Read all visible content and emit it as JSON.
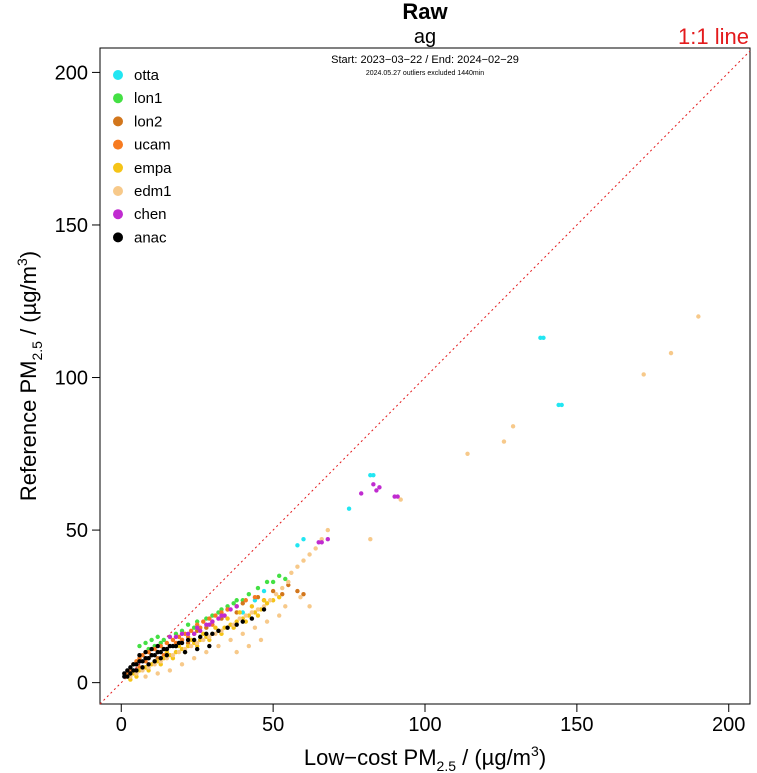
{
  "chart_data": {
    "type": "scatter",
    "title": "Raw",
    "subtitle": "ag",
    "info_line": "Start: 2023−03−22 / End: 2024−02−29",
    "info_note": "2024.05.27 outliers excluded 1440min",
    "reference_line_label": "1:1 line",
    "reference_line_color": "#e31a1c",
    "xlabel": {
      "main": "Low−cost PM",
      "sub": "2.5",
      "unit": " / (µg/m",
      "sup": "3",
      "close": ")"
    },
    "ylabel": {
      "main": "Reference PM",
      "sub": "2.5",
      "unit": " / (µg/m",
      "sup": "3",
      "close": ")"
    },
    "xlim": [
      -7,
      207
    ],
    "ylim": [
      -7,
      208
    ],
    "xticks": [
      0,
      50,
      100,
      150,
      200
    ],
    "yticks": [
      0,
      50,
      100,
      150,
      200
    ],
    "grid": false,
    "legend_position": "top-left",
    "series": [
      {
        "name": "otta",
        "color": "#22e6f2",
        "points": [
          [
            138,
            113
          ],
          [
            139,
            113
          ],
          [
            144,
            91
          ],
          [
            145,
            91
          ],
          [
            82,
            68
          ],
          [
            83,
            68
          ],
          [
            75,
            57
          ],
          [
            60,
            47
          ],
          [
            58,
            45
          ],
          [
            47,
            30
          ],
          [
            44,
            27
          ],
          [
            40,
            23
          ]
        ]
      },
      {
        "name": "lon1",
        "color": "#44e044",
        "points": [
          [
            8,
            13
          ],
          [
            10,
            14
          ],
          [
            12,
            15
          ],
          [
            14,
            14
          ],
          [
            6,
            12
          ],
          [
            16,
            15
          ],
          [
            18,
            16
          ],
          [
            20,
            17
          ],
          [
            22,
            19
          ],
          [
            25,
            20
          ],
          [
            28,
            21
          ],
          [
            30,
            22
          ],
          [
            32,
            23
          ],
          [
            35,
            25
          ],
          [
            37,
            26
          ],
          [
            40,
            27
          ],
          [
            42,
            29
          ],
          [
            45,
            31
          ],
          [
            48,
            33
          ],
          [
            52,
            35
          ],
          [
            54,
            34
          ],
          [
            11,
            12
          ],
          [
            13,
            13
          ],
          [
            9,
            11
          ],
          [
            24,
            18
          ],
          [
            33,
            24
          ],
          [
            38,
            27
          ],
          [
            50,
            33
          ]
        ]
      },
      {
        "name": "lon2",
        "color": "#d2761c",
        "points": [
          [
            5,
            6
          ],
          [
            10,
            9
          ],
          [
            15,
            11
          ],
          [
            20,
            14
          ],
          [
            25,
            17
          ],
          [
            30,
            20
          ],
          [
            35,
            24
          ],
          [
            40,
            26
          ],
          [
            45,
            28
          ],
          [
            50,
            30
          ],
          [
            55,
            32
          ],
          [
            58,
            30
          ],
          [
            60,
            29
          ],
          [
            12,
            8
          ],
          [
            18,
            12
          ],
          [
            28,
            18
          ],
          [
            38,
            23
          ],
          [
            47,
            27
          ],
          [
            53,
            29
          ],
          [
            8,
            5
          ],
          [
            22,
            13
          ],
          [
            33,
            21
          ]
        ]
      },
      {
        "name": "ucam",
        "color": "#f77b20",
        "points": [
          [
            3,
            4
          ],
          [
            5,
            7
          ],
          [
            7,
            9
          ],
          [
            9,
            10
          ],
          [
            11,
            11
          ],
          [
            13,
            12
          ],
          [
            15,
            13
          ],
          [
            17,
            14
          ],
          [
            19,
            15
          ],
          [
            21,
            16
          ],
          [
            23,
            17
          ],
          [
            25,
            19
          ],
          [
            27,
            20
          ],
          [
            29,
            21
          ],
          [
            31,
            22
          ],
          [
            33,
            23
          ],
          [
            35,
            24
          ],
          [
            38,
            25
          ],
          [
            41,
            27
          ],
          [
            44,
            28
          ],
          [
            4,
            6
          ],
          [
            6,
            8
          ],
          [
            8,
            7
          ],
          [
            10,
            9
          ],
          [
            12,
            10
          ],
          [
            14,
            11
          ],
          [
            16,
            12
          ],
          [
            18,
            13
          ],
          [
            20,
            14
          ],
          [
            22,
            15
          ],
          [
            24,
            16
          ],
          [
            26,
            18
          ],
          [
            30,
            19
          ],
          [
            34,
            22
          ],
          [
            2,
            3
          ],
          [
            6,
            5
          ],
          [
            9,
            8
          ],
          [
            14,
            9
          ]
        ]
      },
      {
        "name": "empa",
        "color": "#f5c417",
        "points": [
          [
            2,
            2
          ],
          [
            4,
            3
          ],
          [
            6,
            4
          ],
          [
            8,
            5
          ],
          [
            10,
            6
          ],
          [
            12,
            7
          ],
          [
            14,
            8
          ],
          [
            16,
            9
          ],
          [
            18,
            10
          ],
          [
            20,
            11
          ],
          [
            22,
            12
          ],
          [
            24,
            13
          ],
          [
            26,
            14
          ],
          [
            28,
            15
          ],
          [
            30,
            16
          ],
          [
            32,
            17
          ],
          [
            34,
            18
          ],
          [
            36,
            19
          ],
          [
            38,
            20
          ],
          [
            40,
            21
          ],
          [
            42,
            22
          ],
          [
            44,
            23
          ],
          [
            46,
            24
          ],
          [
            48,
            26
          ],
          [
            50,
            27
          ],
          [
            52,
            28
          ],
          [
            5,
            2
          ],
          [
            9,
            4
          ],
          [
            13,
            6
          ],
          [
            17,
            8
          ],
          [
            21,
            10
          ],
          [
            25,
            12
          ],
          [
            29,
            14
          ],
          [
            33,
            16
          ],
          [
            37,
            18
          ],
          [
            41,
            20
          ],
          [
            45,
            22
          ],
          [
            3,
            1
          ],
          [
            7,
            5
          ],
          [
            11,
            7
          ],
          [
            15,
            10
          ],
          [
            19,
            12
          ],
          [
            23,
            14
          ],
          [
            27,
            16
          ],
          [
            31,
            18
          ],
          [
            35,
            21
          ],
          [
            39,
            23
          ],
          [
            43,
            25
          ],
          [
            47,
            27
          ]
        ]
      },
      {
        "name": "edm1",
        "color": "#f7c98a",
        "points": [
          [
            190,
            120
          ],
          [
            181,
            108
          ],
          [
            172,
            101
          ],
          [
            129,
            84
          ],
          [
            126,
            79
          ],
          [
            114,
            75
          ],
          [
            92,
            60
          ],
          [
            82,
            47
          ],
          [
            68,
            50
          ],
          [
            66,
            47
          ],
          [
            64,
            44
          ],
          [
            62,
            42
          ],
          [
            60,
            40
          ],
          [
            58,
            38
          ],
          [
            56,
            36
          ],
          [
            55,
            33
          ],
          [
            53,
            31
          ],
          [
            51,
            29
          ],
          [
            49,
            27
          ],
          [
            47,
            25
          ],
          [
            45,
            24
          ],
          [
            43,
            23
          ],
          [
            41,
            22
          ],
          [
            39,
            21
          ],
          [
            37,
            19
          ],
          [
            35,
            18
          ],
          [
            33,
            17
          ],
          [
            31,
            16
          ],
          [
            29,
            15
          ],
          [
            27,
            14
          ],
          [
            25,
            13
          ],
          [
            23,
            12
          ],
          [
            21,
            11
          ],
          [
            19,
            10
          ],
          [
            17,
            9
          ],
          [
            15,
            8
          ],
          [
            13,
            7
          ],
          [
            11,
            6
          ],
          [
            9,
            5
          ],
          [
            7,
            4
          ],
          [
            5,
            3
          ],
          [
            3,
            2
          ],
          [
            62,
            25
          ],
          [
            59,
            28
          ],
          [
            52,
            22
          ],
          [
            48,
            20
          ],
          [
            44,
            18
          ],
          [
            40,
            16
          ],
          [
            36,
            14
          ],
          [
            32,
            12
          ],
          [
            28,
            10
          ],
          [
            24,
            8
          ],
          [
            20,
            6
          ],
          [
            16,
            4
          ],
          [
            12,
            3
          ],
          [
            8,
            2
          ],
          [
            54,
            25
          ],
          [
            46,
            14
          ],
          [
            42,
            12
          ],
          [
            38,
            10
          ]
        ]
      },
      {
        "name": "chen",
        "color": "#c02bd0",
        "points": [
          [
            91,
            61
          ],
          [
            90,
            61
          ],
          [
            85,
            64
          ],
          [
            84,
            63
          ],
          [
            83,
            65
          ],
          [
            79,
            62
          ],
          [
            66,
            46
          ],
          [
            68,
            47
          ],
          [
            65,
            46
          ],
          [
            36,
            24
          ],
          [
            34,
            22
          ],
          [
            32,
            21
          ],
          [
            30,
            20
          ],
          [
            28,
            19
          ],
          [
            26,
            17
          ],
          [
            24,
            16
          ],
          [
            22,
            16
          ],
          [
            20,
            16
          ],
          [
            18,
            15
          ],
          [
            16,
            15
          ],
          [
            25,
            18
          ],
          [
            29,
            19
          ],
          [
            33,
            22
          ],
          [
            38,
            25
          ]
        ]
      },
      {
        "name": "anac",
        "color": "#000000",
        "points": [
          [
            1,
            3
          ],
          [
            2,
            4
          ],
          [
            3,
            5
          ],
          [
            4,
            6
          ],
          [
            5,
            6
          ],
          [
            6,
            7
          ],
          [
            7,
            7
          ],
          [
            8,
            8
          ],
          [
            9,
            8
          ],
          [
            10,
            9
          ],
          [
            11,
            9
          ],
          [
            12,
            10
          ],
          [
            13,
            10
          ],
          [
            14,
            11
          ],
          [
            15,
            11
          ],
          [
            16,
            12
          ],
          [
            17,
            12
          ],
          [
            18,
            12
          ],
          [
            19,
            13
          ],
          [
            20,
            13
          ],
          [
            22,
            14
          ],
          [
            24,
            14
          ],
          [
            26,
            15
          ],
          [
            28,
            16
          ],
          [
            30,
            16
          ],
          [
            32,
            17
          ],
          [
            35,
            18
          ],
          [
            38,
            19
          ],
          [
            40,
            20
          ],
          [
            43,
            21
          ],
          [
            47,
            24
          ],
          [
            2,
            2
          ],
          [
            3,
            3
          ],
          [
            5,
            4
          ],
          [
            7,
            5
          ],
          [
            9,
            6
          ],
          [
            11,
            7
          ],
          [
            13,
            8
          ],
          [
            15,
            9
          ],
          [
            6,
            9
          ],
          [
            8,
            10
          ],
          [
            10,
            11
          ],
          [
            12,
            12
          ],
          [
            4,
            4
          ],
          [
            1,
            2
          ],
          [
            29,
            12
          ],
          [
            25,
            11
          ],
          [
            21,
            10
          ]
        ]
      }
    ]
  }
}
